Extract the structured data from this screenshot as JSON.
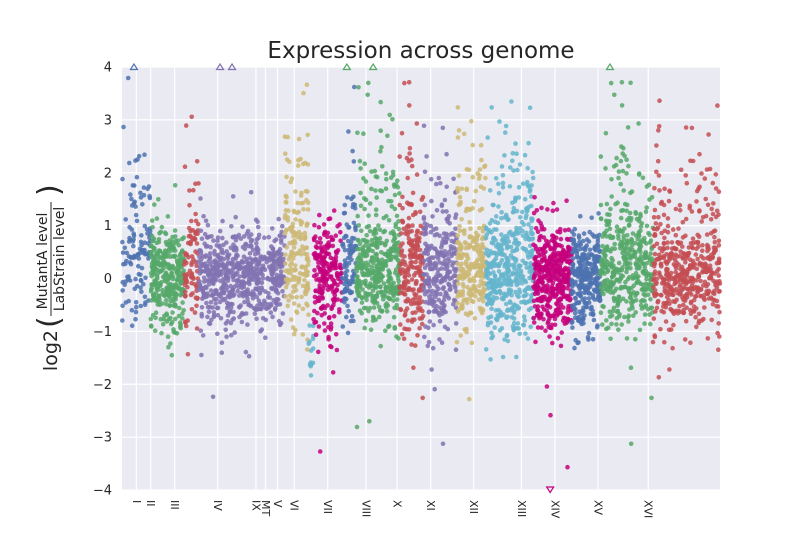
{
  "chart_data": {
    "type": "scatter",
    "title": "Expression across genome",
    "ylabel_prefix": "log2",
    "ylabel_numerator": "MutantA level",
    "ylabel_denominator": "LabStrain level",
    "ylim": [
      -4,
      4
    ],
    "y_ticks": [
      4,
      3,
      2,
      1,
      0,
      -1,
      -2,
      -3,
      -4
    ],
    "y_tick_labels": [
      "4",
      "3",
      "2",
      "1",
      "0",
      "−1",
      "−2",
      "−3",
      "−4"
    ],
    "grid": true,
    "background": "#eaeaf2",
    "categories": [
      "I",
      "II",
      "III",
      "IV",
      "IX",
      "MT",
      "V",
      "VI",
      "VII",
      "VIII",
      "X",
      "XI",
      "XII",
      "XIII",
      "XIV",
      "XV",
      "XVI"
    ],
    "series": [
      {
        "label": "I",
        "color": "#4c72b0",
        "x_range": [
          0.0,
          0.06
        ],
        "n": 120,
        "spread": 0.55,
        "tail": 0.45
      },
      {
        "label": "II",
        "color": "#55a868",
        "x_range": [
          0.06,
          0.13
        ],
        "n": 330,
        "spread": 0.45
      },
      {
        "label": "III",
        "color": "#c44e52",
        "x_range": [
          0.13,
          0.16
        ],
        "n": 90,
        "spread": 0.5,
        "tail": 0.3
      },
      {
        "label": "IV",
        "color": "#8172b2",
        "x_range": [
          0.16,
          0.34
        ],
        "n": 650,
        "spread": 0.45
      },
      {
        "label": "IX",
        "color": "#ccb974",
        "x_range": [
          0.34,
          0.39
        ],
        "n": 180,
        "spread": 0.55,
        "tail": 0.35
      },
      {
        "label": "MT",
        "color": "#64b5cd",
        "x_range": [
          0.39,
          0.4
        ],
        "n": 14,
        "spread": 0.3,
        "center": -1.5
      },
      {
        "label": "V",
        "color": "#c5007c",
        "x_range": [
          0.4,
          0.46
        ],
        "n": 220,
        "spread": 0.55
      },
      {
        "label": "VI",
        "color": "#4c72b0",
        "x_range": [
          0.46,
          0.49
        ],
        "n": 100,
        "spread": 0.5,
        "tail": 0.3
      },
      {
        "label": "VII",
        "color": "#55a868",
        "x_range": [
          0.49,
          0.58
        ],
        "n": 420,
        "spread": 0.45,
        "tail": 0.2
      },
      {
        "label": "VIII",
        "color": "#c44e52",
        "x_range": [
          0.58,
          0.63
        ],
        "n": 220,
        "spread": 0.55,
        "tail": 0.25
      },
      {
        "label": "X",
        "color": "#8172b2",
        "x_range": [
          0.63,
          0.7
        ],
        "n": 270,
        "spread": 0.5,
        "tail": 0.2
      },
      {
        "label": "XI",
        "color": "#ccb974",
        "x_range": [
          0.7,
          0.76
        ],
        "n": 260,
        "spread": 0.5,
        "tail": 0.3
      },
      {
        "label": "XII",
        "color": "#64b5cd",
        "x_range": [
          0.76,
          0.86
        ],
        "n": 460,
        "spread": 0.6,
        "tail": 0.2
      },
      {
        "label": "XIII",
        "color": "#c5007c",
        "x_range": [
          0.86,
          0.94
        ],
        "n": 440,
        "spread": 0.5
      },
      {
        "label": "XIV",
        "color": "#4c72b0",
        "x_range": [
          0.94,
          1.0
        ],
        "n": 300,
        "spread": 0.45
      }
    ],
    "series_extra": [
      {
        "label": "XV",
        "color": "#55a868",
        "x_range": [
          1.0,
          1.11
        ],
        "n": 440,
        "spread": 0.5,
        "tail": 0.25
      },
      {
        "label": "XVI",
        "color": "#c44e52",
        "x_range": [
          1.11,
          1.25
        ],
        "n": 500,
        "spread": 0.5,
        "tail": 0.15
      }
    ],
    "clipped_points": [
      {
        "x": 0.025,
        "y": 4,
        "color": "#4c72b0"
      },
      {
        "x": 0.205,
        "y": 4,
        "color": "#8172b2"
      },
      {
        "x": 0.23,
        "y": 4,
        "color": "#8172b2"
      },
      {
        "x": 0.47,
        "y": 4,
        "color": "#55a868"
      },
      {
        "x": 0.525,
        "y": 4,
        "color": "#55a868"
      },
      {
        "x": 1.02,
        "y": 4,
        "color": "#55a868"
      },
      {
        "x": 0.895,
        "y": -4,
        "color": "#c5007c"
      }
    ]
  }
}
